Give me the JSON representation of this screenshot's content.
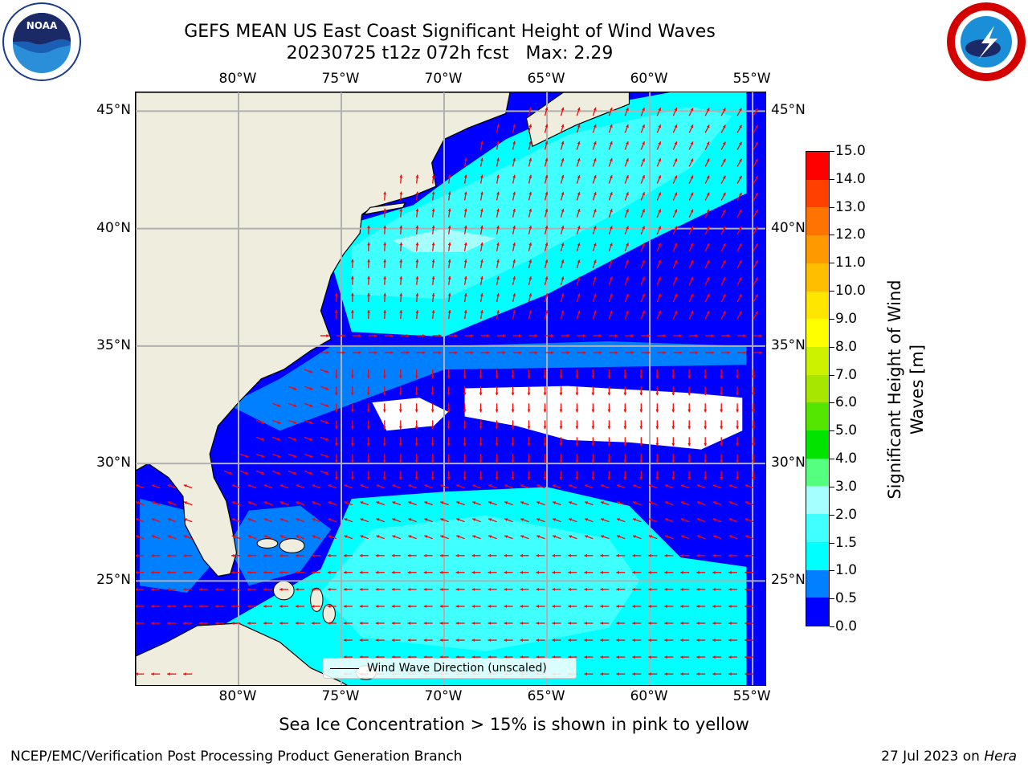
{
  "header": {
    "title_line1": "GEFS MEAN US East Coast Significant Height of Wind Waves",
    "title_line2": "20230725 t12z 072h fcst   Max: 2.29"
  },
  "logos": {
    "left": "NOAA",
    "right": "NATIONAL WEATHER SERVICE"
  },
  "map": {
    "lon_ticks": [
      "80°W",
      "75°W",
      "70°W",
      "65°W",
      "60°W",
      "55°W"
    ],
    "lat_ticks": [
      "45°N",
      "40°N",
      "35°N",
      "30°N",
      "25°N"
    ],
    "legend_label": "Wind Wave Direction (unscaled)",
    "extent": {
      "lon_min": -85,
      "lon_max": -54.3,
      "lat_min": 20.5,
      "lat_max": 45.8
    },
    "land_color": "#efedde",
    "arrow_color": "#ff0000",
    "grid_color": "#b0b0b0"
  },
  "colorbar": {
    "label": "Significant Height of Wind Waves [m]",
    "ticks": [
      "0.0",
      "0.5",
      "1.0",
      "1.5",
      "2.0",
      "3.0",
      "4.0",
      "5.0",
      "6.0",
      "7.0",
      "8.0",
      "9.0",
      "10.0",
      "11.0",
      "12.0",
      "13.0",
      "14.0",
      "15.0"
    ],
    "colors": [
      "#0000ff",
      "#0080ff",
      "#00ffff",
      "#40ffff",
      "#a6ffff",
      "#55ff7f",
      "#00e400",
      "#55e600",
      "#a6e600",
      "#ccf200",
      "#ffff00",
      "#ffe600",
      "#ffbf00",
      "#ff9900",
      "#ff7300",
      "#ff4000",
      "#ff0000"
    ]
  },
  "notes": {
    "ice": "Sea Ice Concentration > 15% is shown in pink to yellow",
    "footer_left": "NCEP/EMC/Verification Post Processing Product Generation Branch",
    "footer_date": "27 Jul 2023 on",
    "footer_machine": "Hera"
  }
}
